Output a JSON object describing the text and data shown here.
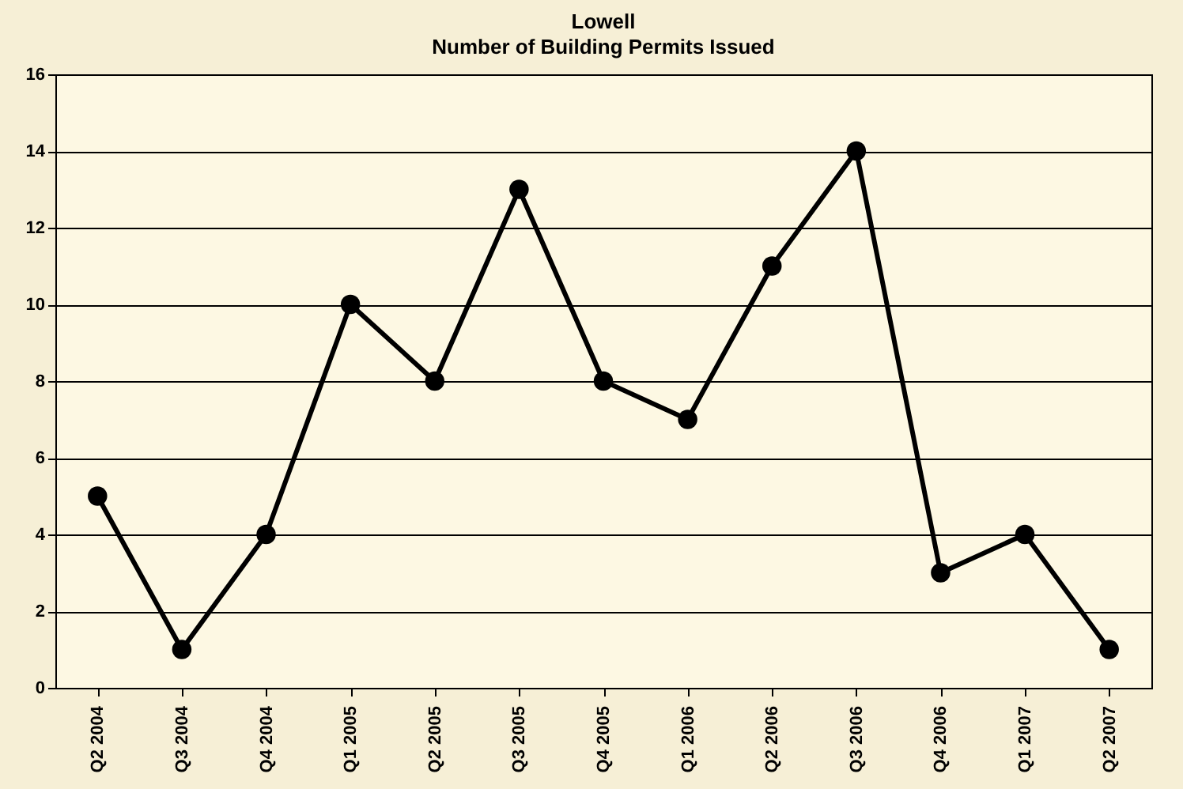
{
  "chart_data": {
    "type": "line",
    "title": "Lowell",
    "subtitle": "Number of Building Permits Issued",
    "categories": [
      "Q2 2004",
      "Q3 2004",
      "Q4 2004",
      "Q1 2005",
      "Q2 2005",
      "Q3 2005",
      "Q4 2005",
      "Q1 2006",
      "Q2 2006",
      "Q3 2006",
      "Q4 2006",
      "Q1 2007",
      "Q2 2007"
    ],
    "series": [
      {
        "color": "#000000",
        "values": [
          5,
          1,
          4,
          10,
          8,
          13,
          8,
          7,
          11,
          14,
          3,
          4,
          1
        ]
      }
    ],
    "ylim": [
      0,
      16
    ],
    "yticks": [
      0,
      2,
      4,
      6,
      8,
      10,
      12,
      14,
      16
    ],
    "grid": "y",
    "marker": "circle",
    "line_style": "solid"
  }
}
